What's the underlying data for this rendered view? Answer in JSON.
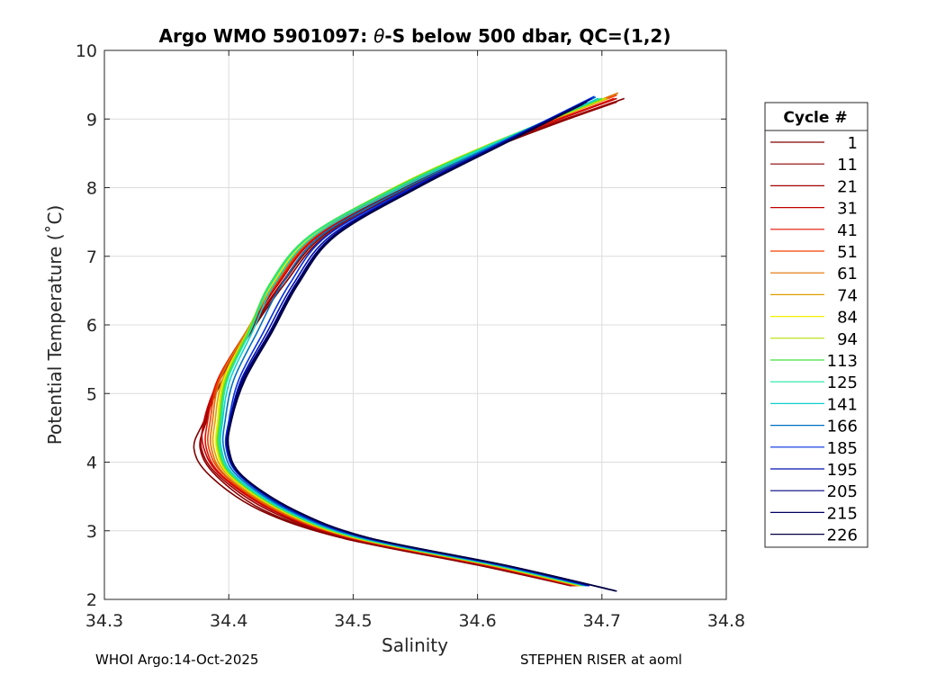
{
  "chart_data": {
    "type": "line",
    "title_prefix": "Argo WMO 5901097: ",
    "title_theta": "θ",
    "title_suffix": "-S below 500 dbar,  QC=(1,2)",
    "xlabel": "Salinity",
    "ylabel": "Potential Temperature (˚C)",
    "xlim": [
      34.3,
      34.8
    ],
    "ylim": [
      2,
      10
    ],
    "xticks": [
      "34.3",
      "34.4",
      "34.5",
      "34.6",
      "34.7",
      "34.8"
    ],
    "yticks": [
      "2",
      "3",
      "4",
      "5",
      "6",
      "7",
      "8",
      "9",
      "10"
    ],
    "grid": true,
    "legend_title": "Cycle #",
    "legend_position": "outside-right",
    "series": [
      {
        "name": "1",
        "color": "#800000",
        "y": [
          9.3,
          8.6,
          8.0,
          7.3,
          6.6,
          5.9,
          5.2,
          4.6,
          4.2,
          3.8,
          3.3,
          2.9,
          2.5,
          2.2
        ],
        "x": [
          34.718,
          34.615,
          34.545,
          34.478,
          34.445,
          34.418,
          34.395,
          34.38,
          34.372,
          34.385,
          34.425,
          34.49,
          34.6,
          34.675
        ]
      },
      {
        "name": "11",
        "color": "#8b0000",
        "y": [
          9.25,
          8.6,
          8.0,
          7.3,
          6.6,
          5.9,
          5.2,
          4.6,
          4.2,
          3.8,
          3.3,
          2.9,
          2.5,
          2.2
        ],
        "x": [
          34.712,
          34.613,
          34.542,
          34.476,
          34.443,
          34.417,
          34.393,
          34.382,
          34.377,
          34.39,
          34.428,
          34.492,
          34.602,
          34.676
        ]
      },
      {
        "name": "21",
        "color": "#a00000",
        "y": [
          9.25,
          8.6,
          8.0,
          7.3,
          6.6,
          5.9,
          5.2,
          4.6,
          4.2,
          3.8,
          3.3,
          2.9,
          2.5,
          2.2
        ],
        "x": [
          34.71,
          34.61,
          34.54,
          34.474,
          34.442,
          34.416,
          34.392,
          34.381,
          34.378,
          34.392,
          34.432,
          34.494,
          34.604,
          34.677
        ]
      },
      {
        "name": "31",
        "color": "#c00000",
        "y": [
          9.3,
          8.6,
          8.0,
          7.3,
          6.6,
          5.9,
          5.2,
          4.6,
          4.2,
          3.8,
          3.3,
          2.9,
          2.5,
          2.2
        ],
        "x": [
          34.712,
          34.608,
          34.538,
          34.472,
          34.44,
          34.415,
          34.392,
          34.38,
          34.38,
          34.394,
          34.435,
          34.496,
          34.606,
          34.678
        ]
      },
      {
        "name": "41",
        "color": "#e01000",
        "y": [
          9.3,
          8.6,
          8.0,
          7.3,
          6.6,
          5.9,
          5.2,
          4.6,
          4.2,
          3.8,
          3.3,
          2.9,
          2.5,
          2.2
        ],
        "x": [
          34.71,
          34.607,
          34.537,
          34.471,
          34.439,
          34.414,
          34.391,
          34.383,
          34.382,
          34.395,
          34.437,
          34.497,
          34.607,
          34.679
        ]
      },
      {
        "name": "51",
        "color": "#f04000",
        "y": [
          9.35,
          8.6,
          8.0,
          7.3,
          6.6,
          5.9,
          5.2,
          4.6,
          4.2,
          3.8,
          3.3,
          2.9,
          2.5,
          2.2
        ],
        "x": [
          34.712,
          34.606,
          34.536,
          34.47,
          34.438,
          34.414,
          34.392,
          34.385,
          34.384,
          34.397,
          34.438,
          34.498,
          34.608,
          34.68
        ]
      },
      {
        "name": "61",
        "color": "#e07000",
        "y": [
          9.38,
          8.6,
          8.0,
          7.3,
          6.6,
          5.9,
          5.2,
          4.6,
          4.2,
          3.8,
          3.3,
          2.9,
          2.5,
          2.2
        ],
        "x": [
          34.713,
          34.606,
          34.535,
          34.469,
          34.437,
          34.414,
          34.393,
          34.387,
          34.386,
          34.398,
          34.439,
          34.499,
          34.609,
          34.681
        ]
      },
      {
        "name": "74",
        "color": "#e0a000",
        "y": [
          9.3,
          8.6,
          8.0,
          7.3,
          6.6,
          5.9,
          5.2,
          4.6,
          4.2,
          3.8,
          3.3,
          2.9,
          2.5,
          2.2
        ],
        "x": [
          34.705,
          34.605,
          34.534,
          34.468,
          34.436,
          34.415,
          34.395,
          34.389,
          34.388,
          34.4,
          34.441,
          34.5,
          34.61,
          34.682
        ]
      },
      {
        "name": "84",
        "color": "#f0f000",
        "y": [
          9.3,
          8.6,
          8.0,
          7.3,
          6.6,
          5.9,
          5.2,
          4.6,
          4.2,
          3.8,
          3.3,
          2.9,
          2.5,
          2.2
        ],
        "x": [
          34.703,
          34.605,
          34.533,
          34.467,
          34.435,
          34.415,
          34.396,
          34.391,
          34.39,
          34.401,
          34.442,
          34.501,
          34.611,
          34.683
        ]
      },
      {
        "name": "94",
        "color": "#b0e000",
        "y": [
          9.3,
          8.6,
          8.0,
          7.3,
          6.6,
          5.9,
          5.2,
          4.6,
          4.2,
          3.8,
          3.3,
          2.9,
          2.5,
          2.2
        ],
        "x": [
          34.702,
          34.606,
          34.533,
          34.466,
          34.434,
          34.415,
          34.397,
          34.392,
          34.391,
          34.402,
          34.443,
          34.502,
          34.612,
          34.684
        ]
      },
      {
        "name": "113",
        "color": "#40e040",
        "y": [
          9.3,
          8.6,
          8.0,
          7.3,
          6.6,
          5.9,
          5.2,
          4.6,
          4.2,
          3.8,
          3.3,
          2.9,
          2.5,
          2.2
        ],
        "x": [
          34.7,
          34.606,
          34.534,
          34.465,
          34.433,
          34.416,
          34.398,
          34.393,
          34.392,
          34.403,
          34.444,
          34.503,
          34.613,
          34.685
        ]
      },
      {
        "name": "125",
        "color": "#20e8a0",
        "y": [
          9.3,
          8.6,
          8.0,
          7.3,
          6.6,
          5.9,
          5.2,
          4.6,
          4.2,
          3.8,
          3.3,
          2.9,
          2.5,
          2.2
        ],
        "x": [
          34.698,
          34.607,
          34.536,
          34.466,
          34.434,
          34.417,
          34.399,
          34.394,
          34.393,
          34.404,
          34.445,
          34.504,
          34.614,
          34.686
        ]
      },
      {
        "name": "141",
        "color": "#10d0d0",
        "y": [
          9.3,
          8.6,
          8.0,
          7.3,
          6.6,
          5.9,
          5.2,
          4.6,
          4.2,
          3.8,
          3.3,
          2.9,
          2.5,
          2.2
        ],
        "x": [
          34.697,
          34.609,
          34.539,
          34.469,
          34.437,
          34.419,
          34.401,
          34.395,
          34.394,
          34.405,
          34.446,
          34.505,
          34.615,
          34.687
        ]
      },
      {
        "name": "166",
        "color": "#0070c0",
        "y": [
          9.32,
          8.6,
          8.0,
          7.3,
          6.6,
          5.9,
          5.2,
          4.6,
          4.2,
          3.8,
          3.3,
          2.9,
          2.5,
          2.2
        ],
        "x": [
          34.695,
          34.611,
          34.543,
          34.474,
          34.443,
          34.423,
          34.404,
          34.397,
          34.396,
          34.407,
          34.448,
          34.507,
          34.617,
          34.688
        ]
      },
      {
        "name": "185",
        "color": "#0030e0",
        "y": [
          9.33,
          8.6,
          8.0,
          7.3,
          6.6,
          5.9,
          5.2,
          4.6,
          4.2,
          3.8,
          3.3,
          2.9,
          2.5,
          2.2
        ],
        "x": [
          34.694,
          34.613,
          34.547,
          34.479,
          34.449,
          34.428,
          34.408,
          34.4,
          34.398,
          34.409,
          34.45,
          34.509,
          34.619,
          34.689
        ]
      },
      {
        "name": "195",
        "color": "#0010b0",
        "y": [
          9.3,
          8.6,
          8.0,
          7.3,
          6.6,
          5.9,
          5.2,
          4.6,
          4.2,
          3.8,
          3.3,
          2.9,
          2.5,
          2.2
        ],
        "x": [
          34.692,
          34.614,
          34.549,
          34.482,
          34.452,
          34.431,
          34.41,
          34.401,
          34.399,
          34.41,
          34.451,
          34.51,
          34.62,
          34.69
        ]
      },
      {
        "name": "205",
        "color": "#000080",
        "y": [
          9.28,
          8.6,
          8.0,
          7.3,
          6.6,
          5.9,
          5.2,
          4.6,
          4.2,
          3.8,
          3.3,
          2.9,
          2.5,
          2.15
        ],
        "x": [
          34.69,
          34.615,
          34.55,
          34.484,
          34.454,
          34.433,
          34.411,
          34.401,
          34.399,
          34.41,
          34.452,
          34.511,
          34.621,
          34.705
        ]
      },
      {
        "name": "215",
        "color": "#000060",
        "y": [
          9.25,
          8.6,
          8.0,
          7.3,
          6.6,
          5.9,
          5.2,
          4.6,
          4.2,
          3.8,
          3.3,
          2.9,
          2.5,
          2.13
        ],
        "x": [
          34.688,
          34.616,
          34.551,
          34.485,
          34.455,
          34.434,
          34.412,
          34.402,
          34.4,
          34.411,
          34.453,
          34.512,
          34.622,
          34.71
        ]
      },
      {
        "name": "226",
        "color": "#000040",
        "y": [
          9.22,
          8.6,
          8.0,
          7.3,
          6.6,
          5.9,
          5.2,
          4.6,
          4.2,
          3.8,
          3.3,
          2.9,
          2.5,
          2.12
        ],
        "x": [
          34.685,
          34.617,
          34.552,
          34.486,
          34.456,
          34.435,
          34.413,
          34.402,
          34.4,
          34.411,
          34.453,
          34.512,
          34.622,
          34.712
        ]
      }
    ]
  },
  "footer": {
    "left": "WHOI Argo:14-Oct-2025",
    "right": "STEPHEN RISER at aoml"
  }
}
